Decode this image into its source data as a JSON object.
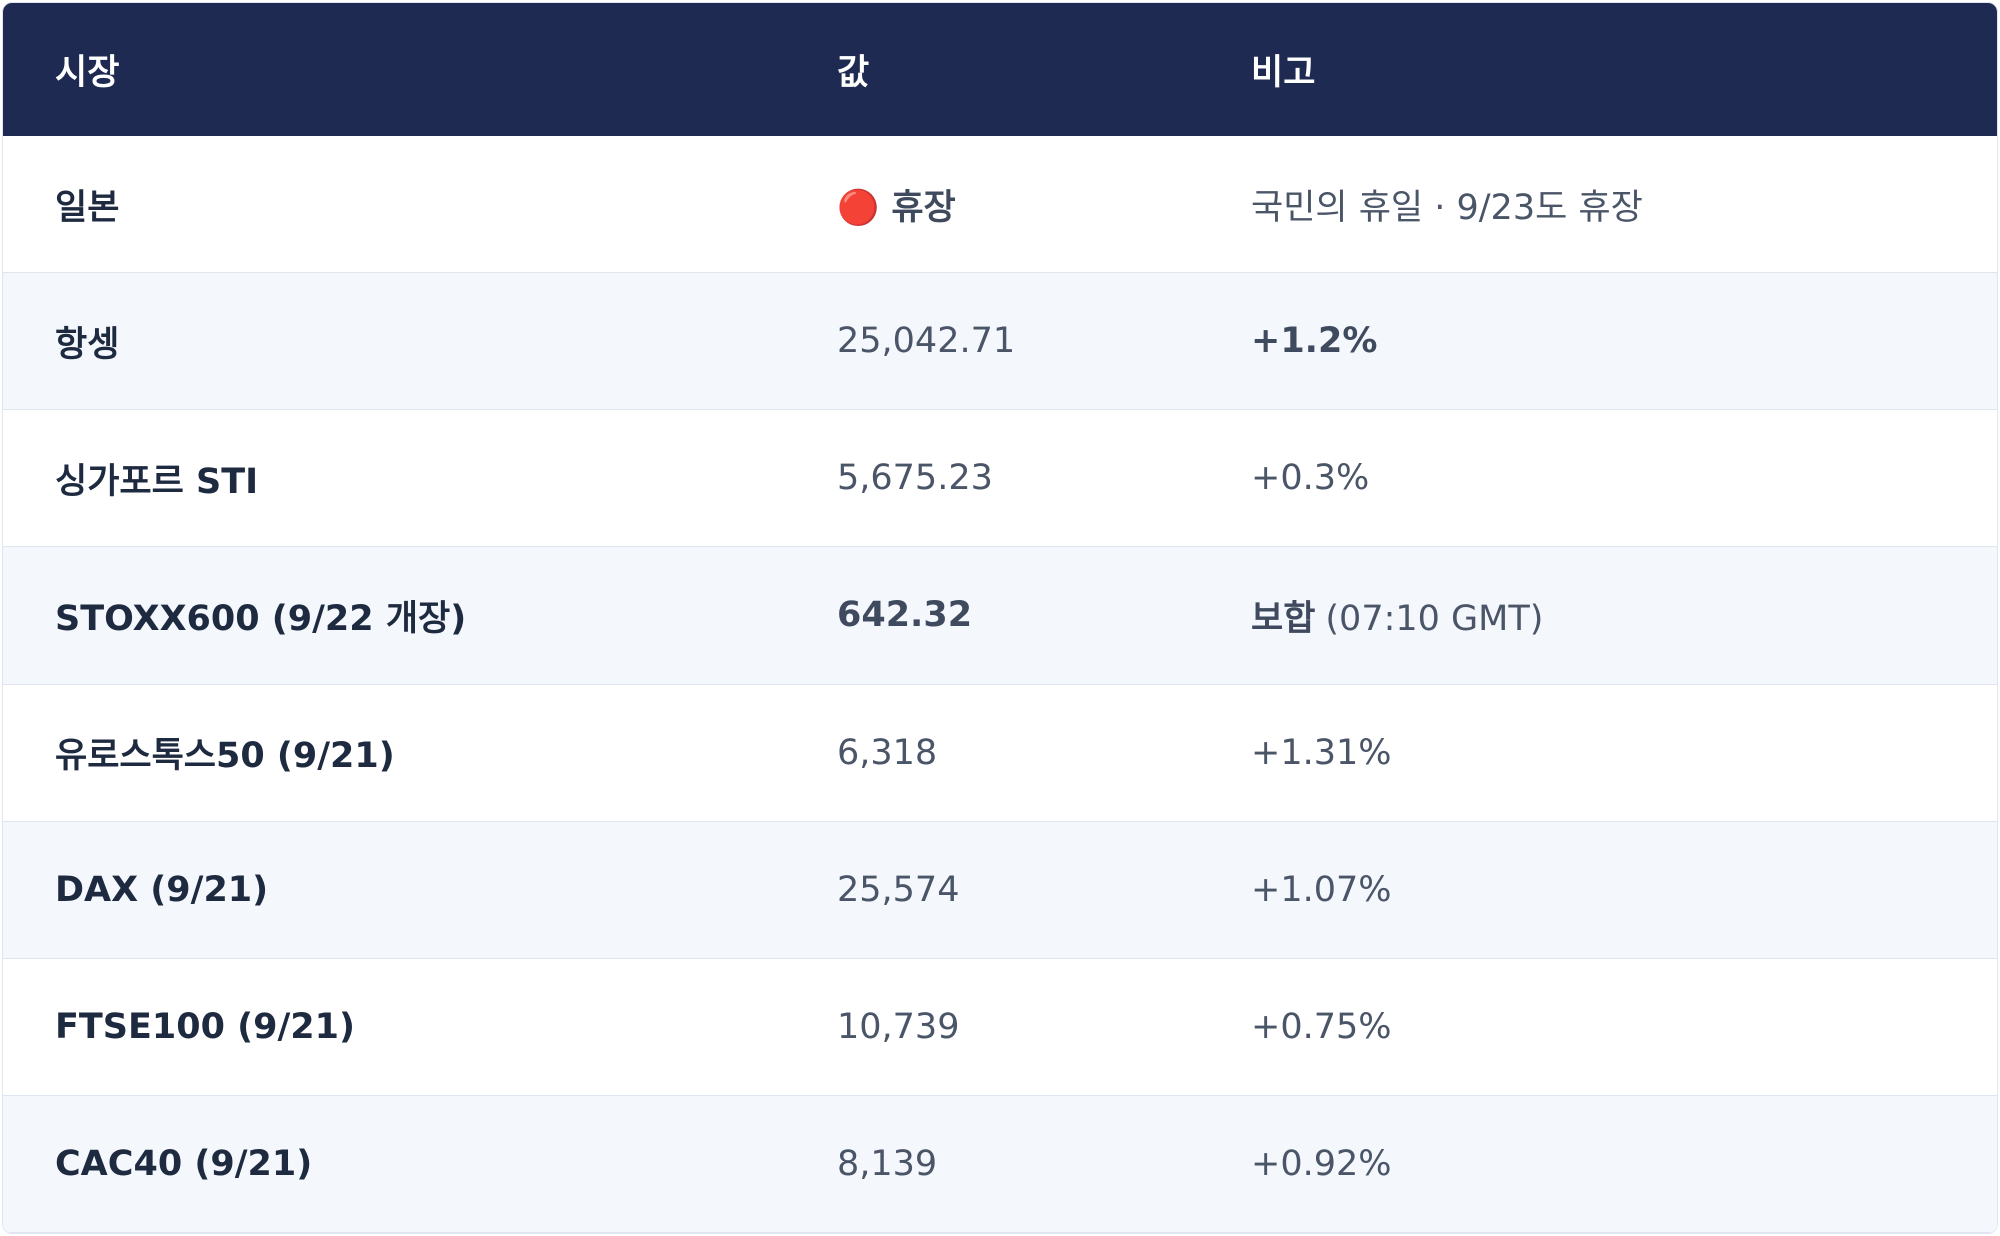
{
  "table": {
    "header": [
      "시장",
      "값",
      "비고"
    ],
    "rows": [
      {
        "market": "일본",
        "value": {
          "icon": "🔴",
          "strong": "휴장"
        },
        "note": "국민의 휴일 · 9/23도 휴장"
      },
      {
        "market": "항셍",
        "value": "25,042.71",
        "note": {
          "strong": "+1.2%"
        }
      },
      {
        "market": "싱가포르 STI",
        "value": "5,675.23",
        "note": "+0.3%"
      },
      {
        "market": "STOXX600 (9/22 개장)",
        "value": {
          "strong": "642.32"
        },
        "note": {
          "strong": "보합",
          "rest": "(07:10 GMT)"
        }
      },
      {
        "market": "유로스톡스50 (9/21)",
        "value": "6,318",
        "note": "+1.31%"
      },
      {
        "market": "DAX (9/21)",
        "value": "25,574",
        "note": "+1.07%"
      },
      {
        "market": "FTSE100 (9/21)",
        "value": "10,739",
        "note": "+0.75%"
      },
      {
        "market": "CAC40 (9/21)",
        "value": "8,139",
        "note": "+0.92%"
      }
    ]
  }
}
